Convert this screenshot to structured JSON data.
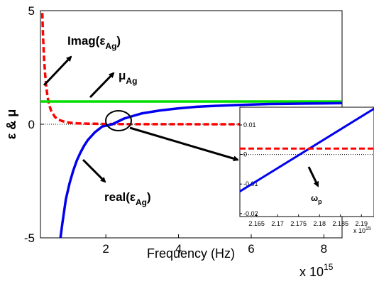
{
  "chart_data": [
    {
      "type": "line",
      "panel": "main",
      "xlabel": "Frequency (Hz)",
      "ylabel": "ε & μ",
      "x_multiplier": "x 10",
      "x_multiplier_exp": "15",
      "xlim": [
        0.2,
        8.5
      ],
      "ylim": [
        -5,
        5
      ],
      "xticks": [
        2,
        4,
        6,
        8
      ],
      "yticks": [
        -5,
        0,
        5
      ],
      "grid": false,
      "series": [
        {
          "color": "#ff0000",
          "style": "dashed",
          "x": [
            0.25,
            0.27,
            0.3,
            0.33,
            0.36,
            0.4,
            0.45,
            0.5,
            0.6,
            0.7,
            0.8,
            0.9,
            1.0,
            1.2,
            1.5,
            2.0,
            3.0,
            4.0,
            5.0,
            6.0,
            7.0,
            8.0,
            8.5
          ],
          "y": [
            4.9,
            3.9,
            2.88,
            2.16,
            1.65,
            1.17,
            0.8,
            0.57,
            0.32,
            0.2,
            0.14,
            0.1,
            0.07,
            0.04,
            0.025,
            0.012,
            0.004,
            0.002,
            0.001,
            0.0007,
            0.0005,
            0.0003,
            0.0003
          ]
        },
        {
          "color": "#00dd00",
          "style": "solid",
          "x": [
            0.2,
            8.5
          ],
          "y": [
            1,
            1
          ]
        },
        {
          "color": "#0000ee",
          "style": "solid",
          "x": [
            0.75,
            0.8,
            0.9,
            1.0,
            1.1,
            1.2,
            1.3,
            1.4,
            1.5,
            1.7,
            1.9,
            2.18,
            2.5,
            3.0,
            3.5,
            4.0,
            4.5,
            5.0,
            5.5,
            6.0,
            6.5,
            7.0,
            7.5,
            8.0,
            8.5
          ],
          "y": [
            -5.0,
            -4.4,
            -3.3,
            -2.6,
            -2.05,
            -1.6,
            -1.25,
            -0.95,
            -0.7,
            -0.35,
            -0.1,
            0.0,
            0.25,
            0.48,
            0.61,
            0.7,
            0.77,
            0.81,
            0.84,
            0.87,
            0.89,
            0.9,
            0.91,
            0.92,
            0.93
          ]
        }
      ],
      "annotations": [
        {
          "main": "Imag(ε",
          "sub": "Ag",
          "close": ")"
        },
        {
          "main": "μ",
          "sub": "Ag",
          "close": ""
        },
        {
          "main": "real(ε",
          "sub": "Ag",
          "close": ")"
        }
      ]
    },
    {
      "type": "line",
      "panel": "inset",
      "xlim": [
        2.161,
        2.193
      ],
      "ylim": [
        -0.021,
        0.016
      ],
      "xticks": [
        2.165,
        2.17,
        2.175,
        2.18,
        2.185,
        2.19
      ],
      "xtick_labels": [
        "2.165",
        "2.17",
        "2.175",
        "2.18",
        "2.185",
        "2.19"
      ],
      "yticks": [
        -0.02,
        -0.01,
        0,
        0.01
      ],
      "ytick_labels": [
        "-0.02",
        "-0.01",
        "0",
        "0.01"
      ],
      "x_multiplier": "x 10",
      "x_multiplier_exp": "15",
      "series": [
        {
          "color": "#0000ee",
          "style": "solid",
          "x": [
            2.161,
            2.193
          ],
          "y": [
            -0.0125,
            0.0155
          ]
        },
        {
          "color": "#ff0000",
          "style": "dashed",
          "x": [
            2.161,
            2.193
          ],
          "y": [
            0.002,
            0.002
          ]
        }
      ],
      "annotations": [
        {
          "main": "ω",
          "sub": "p"
        }
      ]
    }
  ]
}
